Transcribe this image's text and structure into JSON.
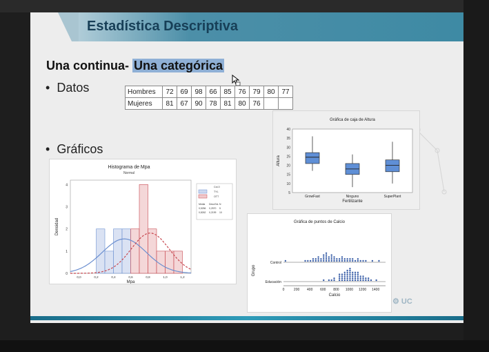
{
  "slide": {
    "title": "Estadística Descriptiva",
    "subtitle_plain": "Una continua- ",
    "subtitle_highlight": "Una categórica",
    "bullets": [
      "Datos",
      "Gráficos"
    ],
    "bullet_symbol": "•",
    "logo_text": "UC"
  },
  "table": {
    "rows": [
      {
        "label": "Hombres",
        "values": [
          "72",
          "69",
          "98",
          "66",
          "85",
          "76",
          "79",
          "80",
          "77"
        ]
      },
      {
        "label": "Mujeres",
        "values": [
          "81",
          "67",
          "90",
          "78",
          "81",
          "80",
          "76",
          "",
          ""
        ]
      }
    ]
  },
  "colors": {
    "title_band": "#3e8aa4",
    "highlight": "#8fb0d6",
    "series_blue": "#6b8fd0",
    "series_red": "#c7474f",
    "box_fill": "#5f8fd6"
  },
  "chart_data": [
    {
      "type": "bar",
      "title": "Histograma de Mpa",
      "subtitle": "Normal",
      "xlabel": "Mpa",
      "ylabel": "Densidad",
      "xticks": [
        "0,0",
        "0,2",
        "0,4",
        "0,6",
        "0,8",
        "1,0",
        "1,2"
      ],
      "xlim": [
        -0.1,
        1.3
      ],
      "ylim": [
        0,
        4.2
      ],
      "yticks": [
        "0",
        "1",
        "2",
        "3",
        "4"
      ],
      "bin_width": 0.1,
      "series": [
        {
          "name": "Col-0",
          "bins_start": [
            0.2,
            0.3,
            0.4,
            0.5
          ],
          "values": [
            2,
            1,
            2,
            2
          ]
        },
        {
          "name": "TYL",
          "bins_start": [
            0.6,
            0.7,
            0.8,
            0.9,
            1.0,
            1.1
          ],
          "values": [
            2,
            4,
            2,
            1,
            1,
            1
          ]
        }
      ],
      "legend_title": "Col-0",
      "legend_entries": [
        "TYL",
        "OTT"
      ],
      "stats_header": [
        "Media",
        "Desv.Est.",
        "N"
      ],
      "stats_rows": [
        [
          "0,5256",
          "0,2570",
          "5"
        ],
        [
          "0,8262",
          "0,2199",
          "10"
        ]
      ]
    },
    {
      "type": "box",
      "title": "Gráfica de caja de Altura",
      "xlabel": "Fertilizante",
      "ylabel": "Altura",
      "categories": [
        "GrowFast",
        "Ninguno",
        "SuperPlant"
      ],
      "ylim": [
        5,
        40
      ],
      "yticks": [
        "5",
        "10",
        "15",
        "20",
        "25",
        "30",
        "35",
        "40"
      ],
      "boxes": [
        {
          "min": 17,
          "q1": 21,
          "median": 24.5,
          "q3": 27,
          "max": 36
        },
        {
          "min": 8,
          "q1": 15,
          "median": 18,
          "q3": 21,
          "max": 26
        },
        {
          "min": 10,
          "q1": 16.5,
          "median": 20,
          "q3": 23,
          "max": 33
        }
      ]
    },
    {
      "type": "scatter",
      "title": "Gráfica de puntos de Calcio",
      "xlabel": "Calcio",
      "ylabel": "Grupo",
      "categories": [
        "Control",
        "Educación"
      ],
      "xticks": [
        "0",
        "200",
        "400",
        "600",
        "800",
        "1000",
        "1200",
        "1400"
      ],
      "xlim": [
        0,
        1550
      ],
      "stacks": [
        {
          "group": "Control",
          "x": [
            30,
            330,
            370,
            410,
            450,
            490,
            530,
            570,
            610,
            650,
            690,
            730,
            770,
            810,
            850,
            890,
            930,
            970,
            1010,
            1050,
            1090,
            1130,
            1170,
            1210,
            1250,
            1350,
            1450
          ],
          "counts": [
            1,
            1,
            1,
            1,
            2,
            2,
            3,
            2,
            4,
            5,
            3,
            4,
            3,
            2,
            2,
            3,
            2,
            2,
            2,
            2,
            1,
            2,
            1,
            1,
            1,
            1,
            1
          ]
        },
        {
          "group": "Educación",
          "x": [
            610,
            690,
            730,
            770,
            850,
            890,
            930,
            970,
            1010,
            1050,
            1090,
            1130,
            1170,
            1210,
            1250,
            1290,
            1330,
            1410
          ],
          "counts": [
            1,
            1,
            1,
            2,
            4,
            4,
            5,
            6,
            7,
            5,
            5,
            5,
            3,
            3,
            2,
            2,
            1,
            1
          ]
        }
      ]
    }
  ]
}
